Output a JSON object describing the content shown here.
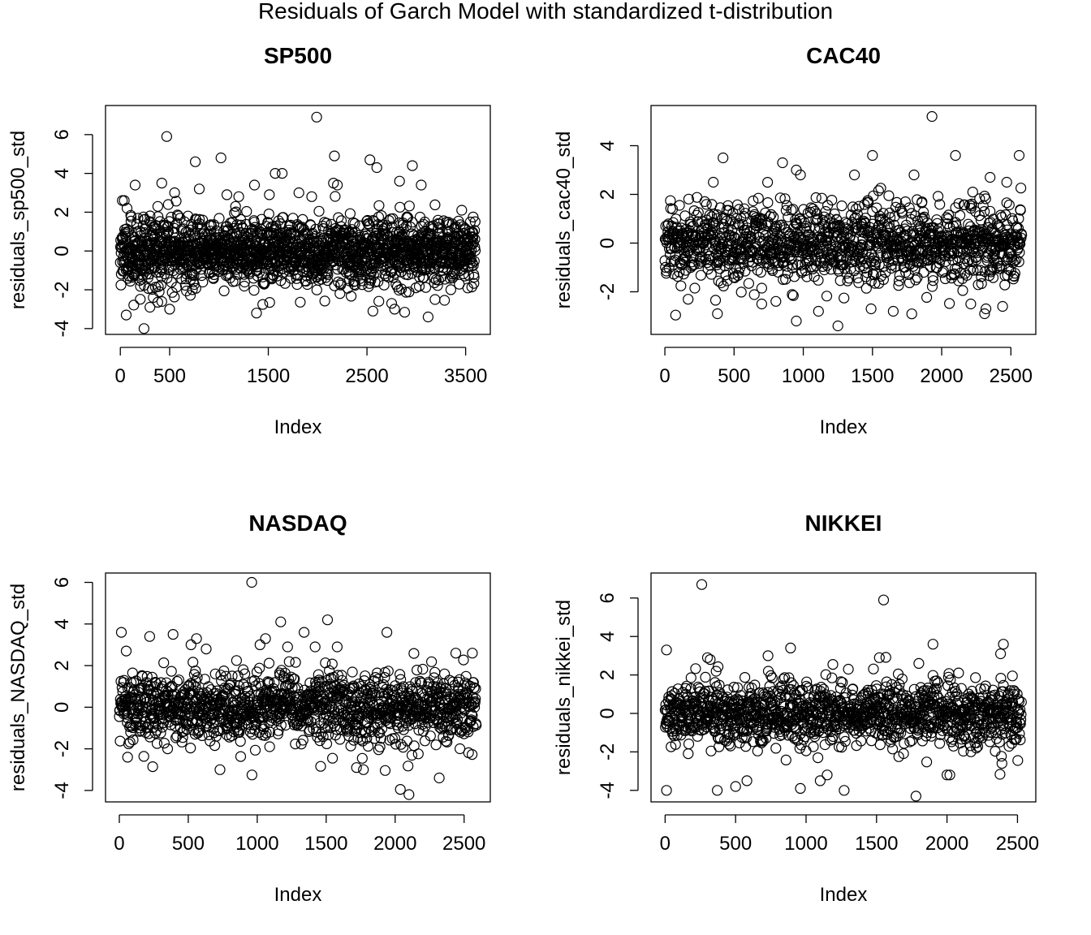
{
  "title": "Residuals of Garch Model with standardized t-distribution",
  "chart_data": [
    {
      "type": "scatter",
      "title": "SP500",
      "xlabel": "Index",
      "ylabel": "residuals_sp500_std",
      "n": 3600,
      "xlim": [
        -150,
        3750
      ],
      "ylim": [
        -4.3,
        7.5
      ],
      "xticks": [
        0,
        500,
        1500,
        2500,
        3500
      ],
      "yticks": [
        -4,
        -2,
        0,
        2,
        4,
        6
      ],
      "outliers": [
        [
          20,
          2.6
        ],
        [
          40,
          2.6
        ],
        [
          60,
          -3.3
        ],
        [
          150,
          3.4
        ],
        [
          240,
          -4.0
        ],
        [
          300,
          -2.9
        ],
        [
          380,
          2.3
        ],
        [
          420,
          3.5
        ],
        [
          470,
          5.9
        ],
        [
          500,
          -3.0
        ],
        [
          550,
          3.0
        ],
        [
          760,
          4.6
        ],
        [
          800,
          3.2
        ],
        [
          1020,
          4.8
        ],
        [
          1080,
          2.9
        ],
        [
          1200,
          2.8
        ],
        [
          1360,
          3.4
        ],
        [
          1380,
          -3.2
        ],
        [
          1510,
          2.9
        ],
        [
          1570,
          4.0
        ],
        [
          1640,
          4.0
        ],
        [
          1810,
          3.0
        ],
        [
          1940,
          2.8
        ],
        [
          1990,
          6.9
        ],
        [
          2170,
          4.9
        ],
        [
          2160,
          3.5
        ],
        [
          2200,
          3.4
        ],
        [
          2530,
          4.7
        ],
        [
          2560,
          -3.1
        ],
        [
          2600,
          4.3
        ],
        [
          2750,
          -2.7
        ],
        [
          2780,
          -3.0
        ],
        [
          2830,
          3.6
        ],
        [
          2960,
          4.4
        ],
        [
          3050,
          3.4
        ],
        [
          3120,
          -3.4
        ],
        [
          3190,
          -2.5
        ]
      ],
      "amp": [
        1.25,
        1.35,
        1.15,
        1.2,
        1.1,
        1.25,
        1.3,
        1.3,
        1.15,
        1.25,
        1.2,
        1.35,
        1.3,
        1.2,
        1.3,
        1.25,
        1.3,
        1.25
      ]
    },
    {
      "type": "scatter",
      "title": "CAC40",
      "xlabel": "Index",
      "ylabel": "residuals_cac40_std",
      "n": 2580,
      "xlim": [
        -100,
        2680
      ],
      "ylim": [
        -3.75,
        5.65
      ],
      "xticks": [
        0,
        500,
        1000,
        1500,
        2000,
        2500
      ],
      "yticks": [
        -2,
        0,
        2,
        4
      ],
      "outliers": [
        [
          350,
          2.5
        ],
        [
          420,
          3.5
        ],
        [
          380,
          -2.9
        ],
        [
          700,
          -2.5
        ],
        [
          850,
          3.3
        ],
        [
          950,
          -3.2
        ],
        [
          950,
          3.0
        ],
        [
          980,
          2.8
        ],
        [
          1110,
          -2.8
        ],
        [
          1250,
          -3.4
        ],
        [
          1370,
          2.8
        ],
        [
          1500,
          3.6
        ],
        [
          1490,
          -2.7
        ],
        [
          1650,
          -2.8
        ],
        [
          1800,
          2.8
        ],
        [
          1930,
          5.2
        ],
        [
          2100,
          3.6
        ],
        [
          2210,
          -2.5
        ],
        [
          2310,
          -2.9
        ],
        [
          2320,
          -2.7
        ],
        [
          2350,
          2.7
        ],
        [
          2440,
          -2.6
        ],
        [
          2470,
          2.5
        ],
        [
          2560,
          3.6
        ]
      ],
      "amp": [
        1.05,
        1.1,
        1.2,
        1.1,
        1.05,
        1.15,
        1.1,
        1.0,
        1.05,
        1.1,
        1.15,
        1.05,
        1.2,
        1.1,
        1.0,
        1.1,
        1.15,
        1.1
      ]
    },
    {
      "type": "scatter",
      "title": "NASDAQ",
      "xlabel": "Index",
      "ylabel": "residuals_NASDAQ_std",
      "n": 2590,
      "xlim": [
        -100,
        2690
      ],
      "ylim": [
        -4.55,
        6.45
      ],
      "xticks": [
        0,
        500,
        1000,
        1500,
        2000,
        2500
      ],
      "yticks": [
        -4,
        -2,
        0,
        2,
        4,
        6
      ],
      "outliers": [
        [
          15,
          3.6
        ],
        [
          50,
          2.7
        ],
        [
          60,
          -2.4
        ],
        [
          220,
          3.4
        ],
        [
          390,
          3.5
        ],
        [
          520,
          3.0
        ],
        [
          560,
          3.3
        ],
        [
          630,
          2.8
        ],
        [
          730,
          -3.0
        ],
        [
          960,
          6.0
        ],
        [
          1020,
          3.0
        ],
        [
          1060,
          3.3
        ],
        [
          1170,
          4.1
        ],
        [
          1220,
          2.9
        ],
        [
          1340,
          3.6
        ],
        [
          1420,
          2.9
        ],
        [
          1510,
          4.2
        ],
        [
          1580,
          2.9
        ],
        [
          1720,
          -2.9
        ],
        [
          1770,
          -3.0
        ],
        [
          1940,
          3.6
        ],
        [
          2100,
          -4.2
        ],
        [
          2320,
          -3.4
        ],
        [
          2440,
          2.6
        ],
        [
          2560,
          2.6
        ]
      ],
      "amp": [
        1.15,
        1.25,
        1.2,
        1.15,
        1.1,
        1.2,
        1.25,
        1.2,
        1.15,
        1.1,
        1.2,
        1.15,
        1.2,
        1.25,
        1.2,
        1.15,
        1.2,
        1.25
      ]
    },
    {
      "type": "scatter",
      "title": "NIKKEI",
      "xlabel": "Index",
      "ylabel": "residuals_nikkei_std",
      "n": 2530,
      "xlim": [
        -100,
        2630
      ],
      "ylim": [
        -4.6,
        7.3
      ],
      "xticks": [
        0,
        500,
        1000,
        1500,
        2000,
        2500
      ],
      "yticks": [
        -4,
        -2,
        0,
        2,
        4,
        6
      ],
      "outliers": [
        [
          10,
          3.3
        ],
        [
          10,
          -4.0
        ],
        [
          260,
          6.7
        ],
        [
          300,
          2.9
        ],
        [
          320,
          2.8
        ],
        [
          370,
          -4.0
        ],
        [
          500,
          -3.8
        ],
        [
          580,
          -3.5
        ],
        [
          730,
          3.0
        ],
        [
          890,
          3.4
        ],
        [
          960,
          -3.9
        ],
        [
          1100,
          -3.5
        ],
        [
          1150,
          -3.2
        ],
        [
          1270,
          -4.0
        ],
        [
          1550,
          5.9
        ],
        [
          1520,
          2.9
        ],
        [
          1780,
          -4.3
        ],
        [
          1800,
          2.6
        ],
        [
          1900,
          3.6
        ],
        [
          2000,
          -3.2
        ],
        [
          2020,
          -3.2
        ],
        [
          2380,
          3.1
        ],
        [
          2400,
          3.6
        ],
        [
          2390,
          -2.6
        ]
      ],
      "amp": [
        1.1,
        1.2,
        1.15,
        1.15,
        1.2,
        1.1,
        1.15,
        1.2,
        1.15,
        1.1,
        1.15,
        1.2,
        1.15,
        1.1,
        1.2,
        1.15,
        1.1,
        1.2
      ]
    }
  ]
}
